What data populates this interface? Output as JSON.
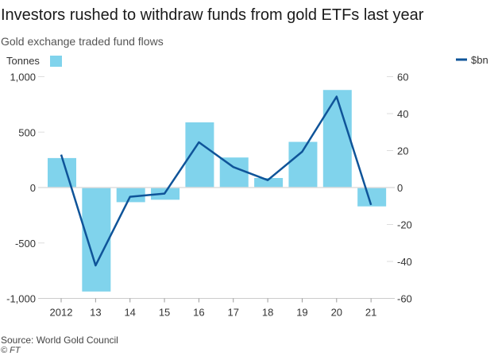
{
  "title": "Investors rushed to withdraw funds from gold ETFs last year",
  "subtitle": "Gold exchange traded fund flows",
  "source": "Source: World Gold Council",
  "credit": "© FT",
  "chart_data": {
    "type": "bar+line",
    "categories": [
      "2012",
      "13",
      "14",
      "15",
      "16",
      "17",
      "18",
      "19",
      "20",
      "21"
    ],
    "series": [
      {
        "name": "Tonnes",
        "type": "bar",
        "axis": "left",
        "color": "#80d3ec",
        "values": [
          266,
          -938,
          -132,
          -110,
          588,
          271,
          86,
          412,
          880,
          -170
        ]
      },
      {
        "name": "$bn",
        "type": "line",
        "axis": "right",
        "color": "#0f5499",
        "values": [
          17.8,
          -42.2,
          -5,
          -3.3,
          24.5,
          11.1,
          4,
          19.4,
          49.2,
          -9.4
        ]
      }
    ],
    "left_axis": {
      "label": "Tonnes",
      "ylim": [
        -1000,
        1000
      ],
      "ticks": [
        1000,
        500,
        0,
        -500,
        -1000
      ],
      "tick_labels": [
        "1,000",
        "500",
        "0",
        "-500",
        "-1,000"
      ]
    },
    "right_axis": {
      "label": "$bn",
      "ylim": [
        -60,
        60
      ],
      "ticks": [
        60,
        40,
        20,
        0,
        -20,
        -40,
        -60
      ],
      "tick_labels": [
        "60",
        "40",
        "20",
        "0",
        "-20",
        "-40",
        "-60"
      ]
    },
    "grid": false,
    "legend": "top"
  }
}
